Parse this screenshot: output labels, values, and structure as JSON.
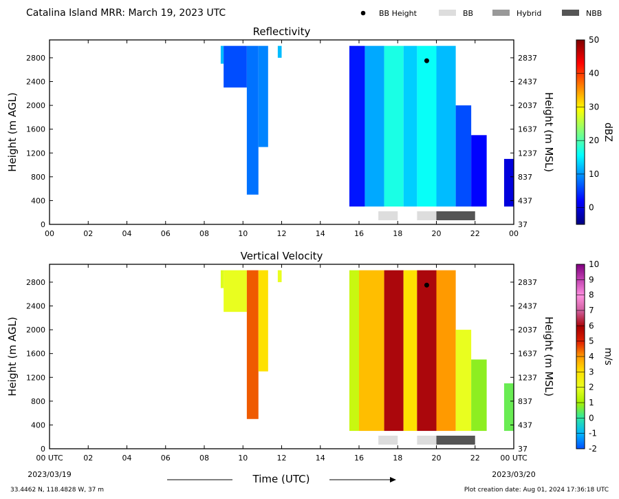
{
  "figure": {
    "title": "Catalina Island MRR:  March 19, 2023 UTC",
    "legend": [
      {
        "label": "BB Height",
        "kind": "dot",
        "color": "#000000"
      },
      {
        "label": "BB",
        "kind": "box",
        "color": "#dddddd"
      },
      {
        "label": "Hybrid",
        "kind": "box",
        "color": "#999999"
      },
      {
        "label": "NBB",
        "kind": "box",
        "color": "#555555"
      }
    ],
    "xlabel": "Time (UTC)",
    "start_date": "2023/03/19",
    "end_date": "2023/03/20",
    "location": "33.4462 N, 118.4828 W, 37 m",
    "creation": "Plot creation date: Aug 01, 2024 17:36:18 UTC"
  },
  "chart_data": [
    {
      "type": "heatmap",
      "title": "Reflectivity",
      "ylabel": "Height (m AGL)",
      "y2label": "Height (m MSL)",
      "xlim": [
        0,
        24
      ],
      "ylim": [
        0,
        3100
      ],
      "x_ticks": [
        "00",
        "02",
        "04",
        "06",
        "08",
        "10",
        "12",
        "14",
        "16",
        "18",
        "20",
        "22",
        "00"
      ],
      "y_ticks": [
        0,
        400,
        800,
        1200,
        1600,
        2000,
        2400,
        2800
      ],
      "y2_ticks": [
        "37",
        "437",
        "837",
        "1237",
        "1637",
        "2037",
        "2437",
        "2837"
      ],
      "colorbar": {
        "label": "dBZ",
        "min": -5,
        "max": 50,
        "ticks": [
          0,
          10,
          20,
          30,
          40,
          50
        ]
      },
      "bb_height": [
        {
          "time": 19.5,
          "height": 2750
        }
      ],
      "bb_bars": [
        {
          "start": 17.0,
          "end": 18.0,
          "kind": "BB"
        },
        {
          "start": 19.0,
          "end": 20.0,
          "kind": "BB"
        },
        {
          "start": 20.0,
          "end": 22.0,
          "kind": "NBB"
        }
      ],
      "columns": [
        {
          "start": 8.85,
          "end": 9.0,
          "ymin": 2700,
          "ymax": 3000,
          "value": 12
        },
        {
          "start": 9.0,
          "end": 10.2,
          "ymin": 2300,
          "ymax": 3000,
          "value": 6
        },
        {
          "start": 10.2,
          "end": 10.8,
          "ymin": 500,
          "ymax": 3000,
          "value": 8
        },
        {
          "start": 10.8,
          "end": 11.3,
          "ymin": 1300,
          "ymax": 3000,
          "value": 9
        },
        {
          "start": 11.8,
          "end": 12.0,
          "ymin": 2800,
          "ymax": 3000,
          "value": 12
        },
        {
          "start": 15.5,
          "end": 16.3,
          "ymin": 300,
          "ymax": 3000,
          "value": 3
        },
        {
          "start": 16.3,
          "end": 17.3,
          "ymin": 300,
          "ymax": 3000,
          "value": 11
        },
        {
          "start": 17.3,
          "end": 18.3,
          "ymin": 300,
          "ymax": 3000,
          "value": 17
        },
        {
          "start": 18.3,
          "end": 19.0,
          "ymin": 300,
          "ymax": 3000,
          "value": 13
        },
        {
          "start": 19.0,
          "end": 20.0,
          "ymin": 300,
          "ymax": 3000,
          "value": 16
        },
        {
          "start": 20.0,
          "end": 21.0,
          "ymin": 300,
          "ymax": 3000,
          "value": 12
        },
        {
          "start": 21.0,
          "end": 21.8,
          "ymin": 300,
          "ymax": 2000,
          "value": 6
        },
        {
          "start": 21.8,
          "end": 22.6,
          "ymin": 300,
          "ymax": 1500,
          "value": 2
        },
        {
          "start": 23.5,
          "end": 24.0,
          "ymin": 300,
          "ymax": 1100,
          "value": 0
        }
      ]
    },
    {
      "type": "heatmap",
      "title": "Vertical Velocity",
      "ylabel": "Height (m AGL)",
      "y2label": "Height (m MSL)",
      "xlim": [
        0,
        24
      ],
      "ylim": [
        0,
        3100
      ],
      "x_ticks": [
        "00 UTC",
        "02",
        "04",
        "06",
        "08",
        "10",
        "12",
        "14",
        "16",
        "18",
        "20",
        "22",
        "00 UTC"
      ],
      "y_ticks": [
        0,
        400,
        800,
        1200,
        1600,
        2000,
        2400,
        2800
      ],
      "y2_ticks": [
        "37",
        "437",
        "837",
        "1237",
        "1637",
        "2037",
        "2437",
        "2837"
      ],
      "colorbar": {
        "label": "m/s",
        "min": -2,
        "max": 10,
        "ticks": [
          -2,
          -1,
          0,
          1,
          2,
          3,
          4,
          5,
          6,
          7,
          8,
          9,
          10
        ]
      },
      "bb_height": [
        {
          "time": 19.5,
          "height": 2750
        }
      ],
      "bb_bars": [
        {
          "start": 17.0,
          "end": 18.0,
          "kind": "BB"
        },
        {
          "start": 19.0,
          "end": 20.0,
          "kind": "BB"
        },
        {
          "start": 20.0,
          "end": 22.0,
          "kind": "NBB"
        }
      ],
      "columns": [
        {
          "start": 8.85,
          "end": 9.0,
          "ymin": 2700,
          "ymax": 3000,
          "value": 1.8
        },
        {
          "start": 9.0,
          "end": 10.2,
          "ymin": 2300,
          "ymax": 3000,
          "value": 2.0
        },
        {
          "start": 10.2,
          "end": 10.8,
          "ymin": 500,
          "ymax": 3000,
          "value": 4.5
        },
        {
          "start": 10.8,
          "end": 11.3,
          "ymin": 1300,
          "ymax": 3000,
          "value": 3.0
        },
        {
          "start": 11.8,
          "end": 12.0,
          "ymin": 2800,
          "ymax": 3000,
          "value": 2.0
        },
        {
          "start": 15.5,
          "end": 16.0,
          "ymin": 300,
          "ymax": 3000,
          "value": 1.5
        },
        {
          "start": 16.0,
          "end": 17.3,
          "ymin": 300,
          "ymax": 3000,
          "value": 3.5
        },
        {
          "start": 17.3,
          "end": 18.3,
          "ymin": 300,
          "ymax": 3000,
          "value": 6.0
        },
        {
          "start": 18.3,
          "end": 19.0,
          "ymin": 300,
          "ymax": 3000,
          "value": 3.0
        },
        {
          "start": 19.0,
          "end": 20.0,
          "ymin": 300,
          "ymax": 3000,
          "value": 6.0
        },
        {
          "start": 20.0,
          "end": 21.0,
          "ymin": 300,
          "ymax": 3000,
          "value": 4.0
        },
        {
          "start": 21.0,
          "end": 21.8,
          "ymin": 300,
          "ymax": 2000,
          "value": 2.0
        },
        {
          "start": 21.8,
          "end": 22.6,
          "ymin": 300,
          "ymax": 1500,
          "value": 0.8
        },
        {
          "start": 23.5,
          "end": 24.0,
          "ymin": 300,
          "ymax": 1100,
          "value": 0.5
        }
      ]
    }
  ]
}
